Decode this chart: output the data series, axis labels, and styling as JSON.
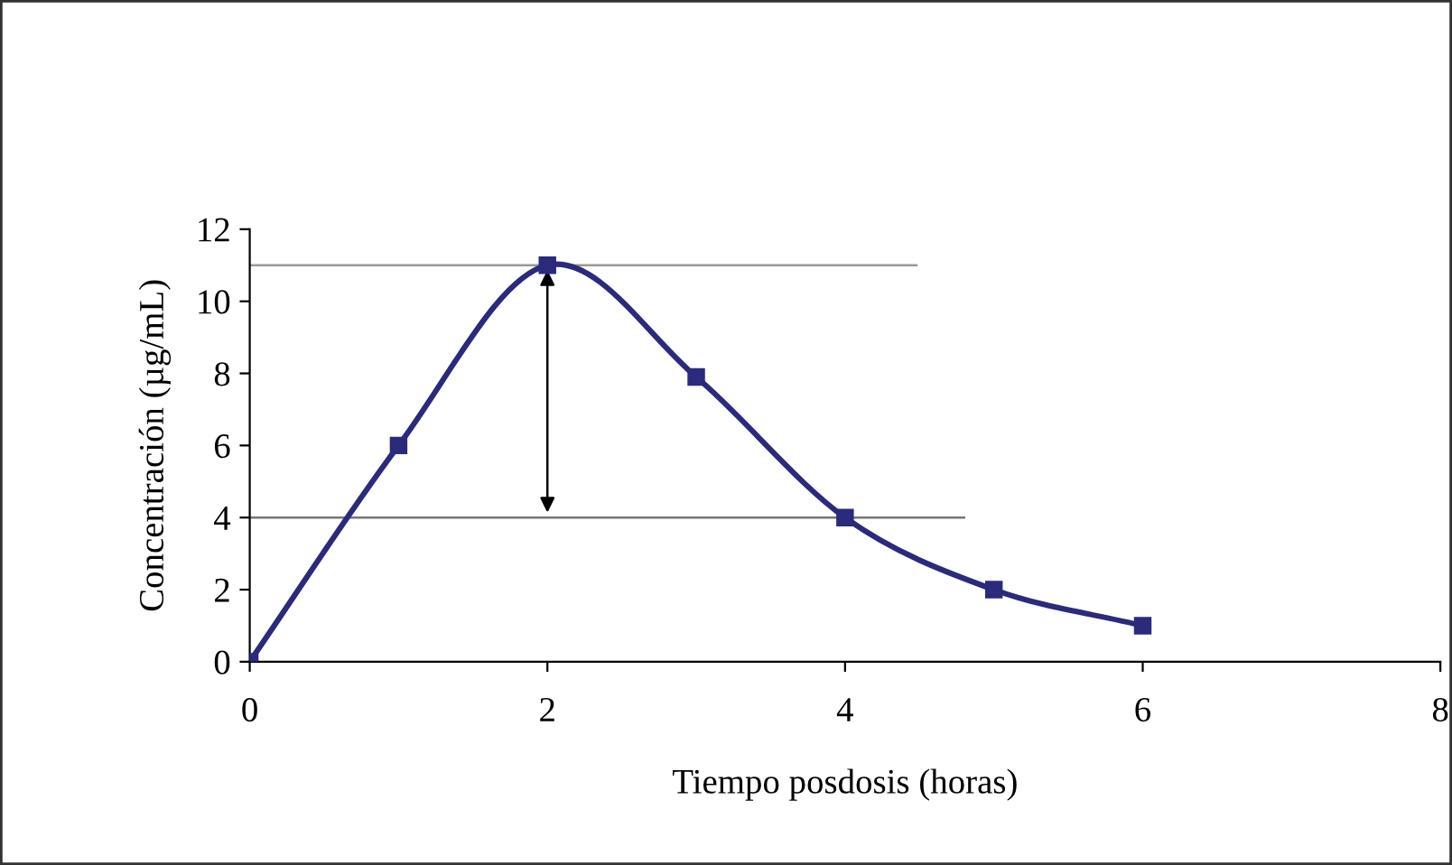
{
  "chart_data": {
    "type": "line",
    "xlabel": "Tiempo posdosis (horas)",
    "ylabel": "Concentración (µg/mL)",
    "x": [
      0,
      1,
      2,
      3,
      4,
      5,
      6
    ],
    "series": [
      {
        "color": "#2b2a7c",
        "values": [
          0,
          6,
          11,
          7.9,
          4,
          2,
          1
        ]
      }
    ],
    "xlim": [
      0,
      8
    ],
    "xticks": [
      0,
      2,
      4,
      6,
      8
    ],
    "ylim": [
      0,
      12
    ],
    "yticks": [
      0,
      2,
      4,
      6,
      8,
      10,
      12
    ],
    "ref_lines": [
      {
        "axis": "y",
        "value": 11,
        "color": "#999999"
      },
      {
        "axis": "y",
        "value": 4,
        "color": "#777777"
      }
    ],
    "grid": false,
    "legend": false,
    "marker": "square",
    "line_style": "solid"
  }
}
